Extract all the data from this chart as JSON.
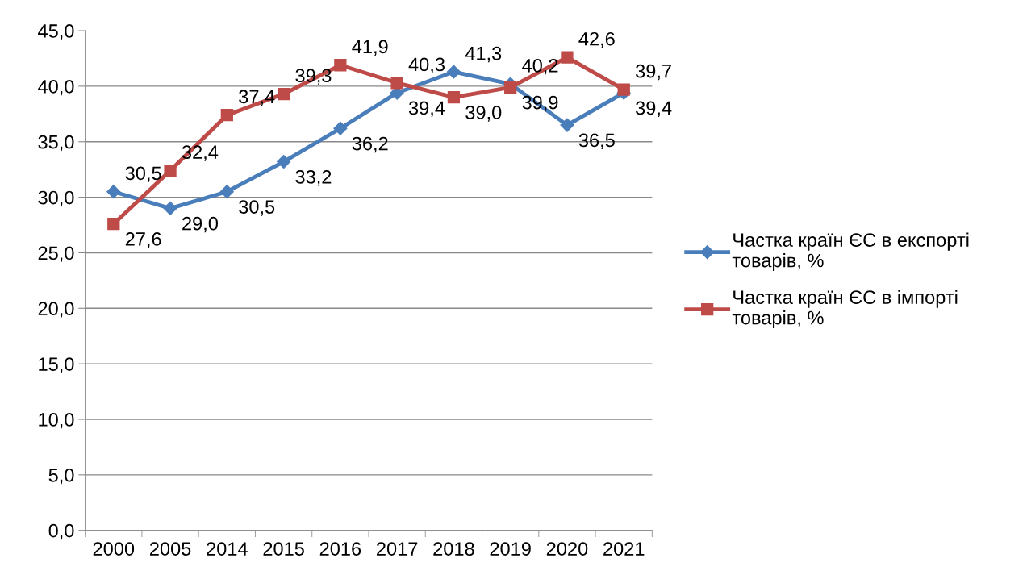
{
  "chart_data": {
    "type": "line",
    "categories": [
      "2000",
      "2005",
      "2014",
      "2015",
      "2016",
      "2017",
      "2018",
      "2019",
      "2020",
      "2021"
    ],
    "series": [
      {
        "name": "Частка країн ЄС в експорті товарів, %",
        "color": "#4a7ebb",
        "marker": "diamond",
        "values": [
          30.5,
          29.0,
          30.5,
          33.2,
          36.2,
          39.4,
          41.3,
          40.2,
          36.5,
          39.4
        ],
        "value_labels": [
          "30,5",
          "29,0",
          "30,5",
          "33,2",
          "36,2",
          "39,4",
          "41,3",
          "40,2",
          "36,5",
          "39,4"
        ]
      },
      {
        "name": "Частка країн ЄС в імпорті товарів, %",
        "color": "#be4b48",
        "marker": "square",
        "values": [
          27.6,
          32.4,
          37.4,
          39.3,
          41.9,
          40.3,
          39.0,
          39.9,
          42.6,
          39.7
        ],
        "value_labels": [
          "27,6",
          "32,4",
          "37,4",
          "39,3",
          "41,9",
          "40,3",
          "39,0",
          "39,9",
          "42,6",
          "39,7"
        ]
      }
    ],
    "ylim": [
      0,
      45
    ],
    "yticks": [
      {
        "value": 0,
        "label": "0,0"
      },
      {
        "value": 5,
        "label": "5,0"
      },
      {
        "value": 10,
        "label": "10,0"
      },
      {
        "value": 15,
        "label": "15,0"
      },
      {
        "value": 20,
        "label": "20,0"
      },
      {
        "value": 25,
        "label": "25,0"
      },
      {
        "value": 30,
        "label": "30,0"
      },
      {
        "value": 35,
        "label": "35,0"
      },
      {
        "value": 40,
        "label": "40,0"
      },
      {
        "value": 45,
        "label": "45,0"
      }
    ],
    "grid": "y",
    "legend": "right",
    "line_style": "solid"
  }
}
